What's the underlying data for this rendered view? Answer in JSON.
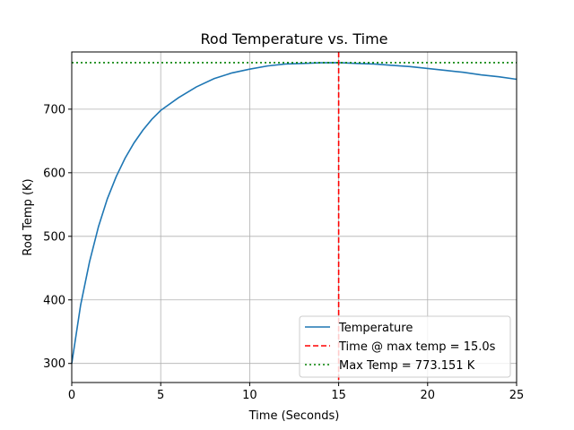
{
  "chart_data": {
    "type": "line",
    "title": "Rod Temperature vs. Time",
    "xlabel": "Time (Seconds)",
    "ylabel": "Rod Temp (K)",
    "xlim": [
      0,
      25
    ],
    "ylim": [
      270,
      790
    ],
    "xticks": [
      0,
      5,
      10,
      15,
      20,
      25
    ],
    "yticks": [
      300,
      400,
      500,
      600,
      700
    ],
    "grid": true,
    "legend_position": "lower-right",
    "series": [
      {
        "name": "Temperature",
        "color": "#1f77b4",
        "style": "solid",
        "x": [
          0,
          0.5,
          1,
          1.5,
          2,
          2.5,
          3,
          3.5,
          4,
          4.5,
          5,
          6,
          7,
          8,
          9,
          10,
          11,
          12,
          13,
          14,
          15,
          16,
          17,
          18,
          19,
          20,
          21,
          22,
          23,
          24,
          25
        ],
        "y": [
          300,
          392,
          460,
          515,
          559,
          594,
          623,
          647,
          667,
          684,
          698,
          718,
          735,
          748,
          757,
          763,
          768,
          771,
          772,
          773,
          773.15,
          772,
          771,
          769,
          767,
          764,
          761,
          758,
          754,
          751,
          747
        ]
      },
      {
        "name": "Time @ max temp = 15.0s",
        "color": "#ff0000",
        "style": "dashed",
        "orientation": "vertical",
        "x_value": 15.0
      },
      {
        "name": "Max Temp = 773.151 K",
        "color": "#008000",
        "style": "dotted",
        "orientation": "horizontal",
        "y_value": 773.151
      }
    ]
  }
}
